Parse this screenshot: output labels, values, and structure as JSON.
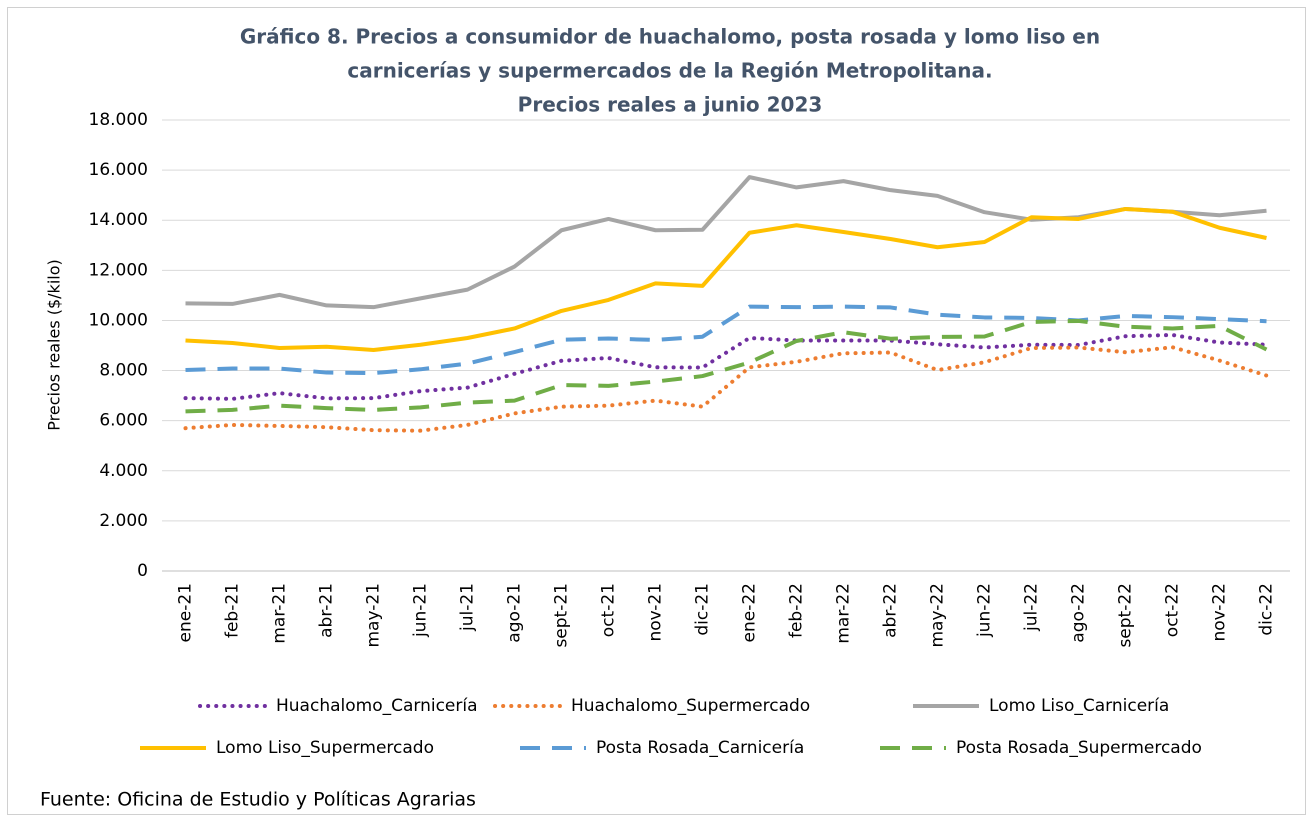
{
  "chart_data": {
    "type": "line",
    "title": [
      "Gráfico 8. Precios a consumidor de huachalomo, posta rosada y lomo liso en",
      "carnicerías y supermercados de la Región Metropolitana.",
      "Precios reales a junio 2023"
    ],
    "y_label": "Precios reales  ($/kilo)",
    "source": "Fuente: Oficina de Estudio y Políticas Agrarias",
    "categories": [
      "ene-21",
      "feb-21",
      "mar-21",
      "abr-21",
      "may-21",
      "jun-21",
      "jul-21",
      "ago-21",
      "sept-21",
      "oct-21",
      "nov-21",
      "dic-21",
      "ene-22",
      "feb-22",
      "mar-22",
      "abr-22",
      "may-22",
      "jun-22",
      "jul-22",
      "ago-22",
      "sept-22",
      "oct-22",
      "nov-22",
      "dic-22"
    ],
    "ylim": [
      0,
      18000
    ],
    "yticks": [
      0,
      {
        "value": 2000,
        "label": "2.000"
      },
      {
        "value": 4000,
        "label": "4.000"
      },
      {
        "value": 6000,
        "label": "6.000"
      },
      {
        "value": 8000,
        "label": "8.000"
      },
      {
        "value": 10000,
        "label": "10.000"
      },
      {
        "value": 12000,
        "label": "12.000"
      },
      {
        "value": 14000,
        "label": "14.000"
      },
      {
        "value": 16000,
        "label": "16.000"
      },
      {
        "value": 18000,
        "label": "18.000"
      }
    ],
    "grid": true,
    "legend": "bottom",
    "series": [
      {
        "name": "Huachalomo_Carnicería",
        "color": "#7030a0",
        "dash": "dotted",
        "values": [
          6900,
          6870,
          7100,
          6890,
          6900,
          7180,
          7320,
          7870,
          8390,
          8500,
          8130,
          8120,
          9300,
          9200,
          9200,
          9200,
          9050,
          8920,
          9030,
          9020,
          9370,
          9420,
          9120,
          9030
        ]
      },
      {
        "name": "Huachalomo_Supermercado",
        "color": "#ed7d31",
        "dash": "dotted",
        "values": [
          5700,
          5830,
          5790,
          5740,
          5620,
          5600,
          5830,
          6290,
          6560,
          6600,
          6800,
          6560,
          8130,
          8350,
          8690,
          8720,
          8020,
          8330,
          8900,
          8920,
          8730,
          8930,
          8400,
          7800
        ]
      },
      {
        "name": "Lomo Liso_Carnicería",
        "color": "#a5a5a5",
        "dash": "solid",
        "values": [
          10680,
          10660,
          11020,
          10600,
          10530,
          10880,
          11230,
          12150,
          13600,
          14050,
          13600,
          13620,
          15720,
          15310,
          15560,
          15200,
          14970,
          14320,
          14020,
          14120,
          14450,
          14340,
          14200,
          14380
        ]
      },
      {
        "name": "Lomo Liso_Supermercado",
        "color": "#ffc000",
        "dash": "solid",
        "values": [
          9200,
          9100,
          8900,
          8950,
          8820,
          9030,
          9300,
          9680,
          10380,
          10820,
          11480,
          11380,
          13500,
          13800,
          13530,
          13250,
          12920,
          13130,
          14120,
          14050,
          14450,
          14340,
          13700,
          13290
        ]
      },
      {
        "name": "Posta Rosada_Carnicería",
        "color": "#5b9bd5",
        "dash": "dashed",
        "values": [
          8020,
          8080,
          8080,
          7920,
          7900,
          8050,
          8280,
          8740,
          9230,
          9280,
          9220,
          9350,
          10550,
          10530,
          10550,
          10520,
          10230,
          10120,
          10100,
          10000,
          10180,
          10130,
          10050,
          9970
        ]
      },
      {
        "name": "Posta Rosada_Supermercado",
        "color": "#70ad47",
        "dash": "dashed",
        "values": [
          6370,
          6430,
          6600,
          6500,
          6430,
          6530,
          6720,
          6800,
          7420,
          7390,
          7560,
          7780,
          8320,
          9180,
          9530,
          9270,
          9340,
          9360,
          9940,
          9980,
          9750,
          9680,
          9780,
          8840
        ]
      }
    ]
  }
}
